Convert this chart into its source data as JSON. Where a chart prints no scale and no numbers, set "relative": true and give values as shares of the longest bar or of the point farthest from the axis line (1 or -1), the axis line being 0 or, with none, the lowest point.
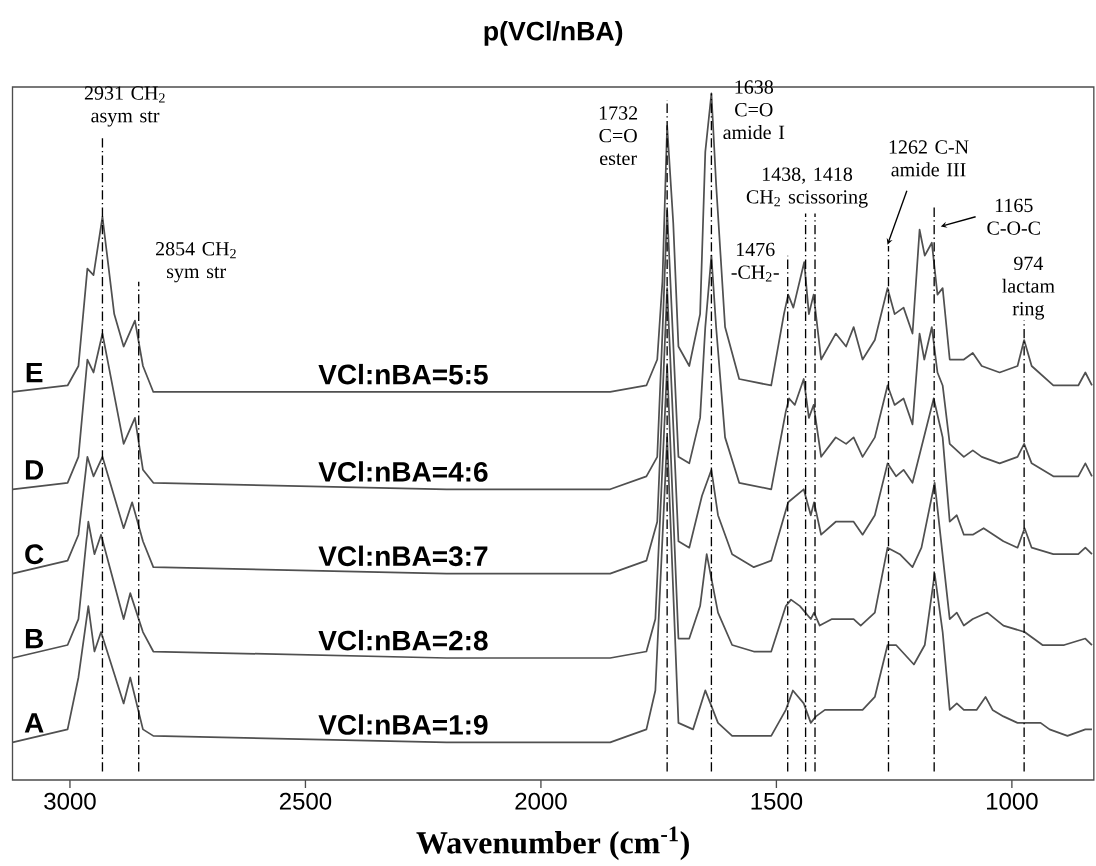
{
  "chart_data": {
    "type": "line",
    "title": "p(VCl/nBA)",
    "xlabel": "Wavenumber (cm$^{-1}$)",
    "relative": true,
    "line_style": "solid",
    "xlim": [
      3122,
      826
    ],
    "xticks": [
      3000,
      2500,
      2000,
      1500,
      1000
    ],
    "series": [
      {
        "name": "VCl:nBA=5:5",
        "color": "#505050",
        "x": [
          3122,
          3005,
          2982,
          2963,
          2950,
          2931,
          2906,
          2886,
          2862,
          2845,
          2823,
          2792,
          2200,
          1853,
          1776,
          1753,
          1742,
          1732,
          1719,
          1708,
          1685,
          1662,
          1651,
          1638,
          1628,
          1609,
          1579,
          1511,
          1484,
          1475,
          1464,
          1441,
          1431,
          1421,
          1405,
          1374,
          1352,
          1336,
          1317,
          1291,
          1264,
          1249,
          1230,
          1211,
          1196,
          1185,
          1170,
          1158,
          1147,
          1132,
          1102,
          1083,
          1064,
          1026,
          988,
          974,
          958,
          912,
          859,
          844,
          830
        ],
        "values": [
          0.54,
          0.55,
          0.58,
          0.73,
          0.72,
          0.81,
          0.66,
          0.61,
          0.65,
          0.58,
          0.54,
          0.54,
          0.54,
          0.54,
          0.55,
          0.59,
          0.71,
          0.95,
          0.8,
          0.61,
          0.58,
          0.66,
          0.91,
          1.0,
          0.86,
          0.64,
          0.56,
          0.55,
          0.66,
          0.69,
          0.67,
          0.74,
          0.66,
          0.69,
          0.59,
          0.63,
          0.61,
          0.64,
          0.59,
          0.62,
          0.7,
          0.66,
          0.67,
          0.63,
          0.79,
          0.75,
          0.77,
          0.69,
          0.7,
          0.59,
          0.59,
          0.6,
          0.58,
          0.57,
          0.58,
          0.62,
          0.58,
          0.55,
          0.55,
          0.57,
          0.55
        ]
      },
      {
        "name": "VCl:nBA=4:6",
        "color": "#505050",
        "x": [
          3122,
          3005,
          2982,
          2963,
          2950,
          2931,
          2886,
          2862,
          2845,
          2823,
          2200,
          1853,
          1776,
          1753,
          1742,
          1732,
          1708,
          1685,
          1662,
          1651,
          1638,
          1628,
          1609,
          1579,
          1511,
          1480,
          1473,
          1461,
          1442,
          1431,
          1421,
          1405,
          1374,
          1352,
          1336,
          1317,
          1291,
          1264,
          1249,
          1230,
          1211,
          1196,
          1186,
          1170,
          1158,
          1147,
          1132,
          1102,
          1083,
          1064,
          1026,
          988,
          974,
          958,
          912,
          859,
          844,
          830
        ],
        "values": [
          0.39,
          0.4,
          0.44,
          0.59,
          0.57,
          0.63,
          0.46,
          0.5,
          0.42,
          0.4,
          0.39,
          0.39,
          0.41,
          0.44,
          0.63,
          0.82,
          0.44,
          0.43,
          0.5,
          0.64,
          0.75,
          0.64,
          0.47,
          0.4,
          0.39,
          0.51,
          0.53,
          0.52,
          0.56,
          0.5,
          0.52,
          0.44,
          0.47,
          0.46,
          0.47,
          0.44,
          0.47,
          0.55,
          0.52,
          0.53,
          0.49,
          0.63,
          0.59,
          0.64,
          0.57,
          0.55,
          0.46,
          0.44,
          0.45,
          0.44,
          0.43,
          0.44,
          0.46,
          0.43,
          0.41,
          0.41,
          0.43,
          0.41
        ]
      },
      {
        "name": "VCl:nBA=3:7",
        "color": "#505050",
        "x": [
          3122,
          3005,
          2982,
          2963,
          2950,
          2931,
          2886,
          2868,
          2845,
          2823,
          2200,
          1853,
          1776,
          1753,
          1732,
          1708,
          1685,
          1658,
          1638,
          1624,
          1594,
          1548,
          1511,
          1475,
          1442,
          1427,
          1420,
          1405,
          1374,
          1336,
          1317,
          1291,
          1264,
          1246,
          1230,
          1211,
          1166,
          1147,
          1132,
          1117,
          1102,
          1083,
          1060,
          1018,
          988,
          973,
          958,
          912,
          859,
          844,
          830
        ],
        "values": [
          0.26,
          0.28,
          0.32,
          0.44,
          0.41,
          0.44,
          0.33,
          0.37,
          0.31,
          0.27,
          0.26,
          0.26,
          0.28,
          0.34,
          0.7,
          0.31,
          0.3,
          0.38,
          0.42,
          0.35,
          0.29,
          0.27,
          0.28,
          0.37,
          0.39,
          0.35,
          0.37,
          0.32,
          0.34,
          0.34,
          0.32,
          0.35,
          0.43,
          0.41,
          0.42,
          0.4,
          0.53,
          0.47,
          0.34,
          0.35,
          0.32,
          0.32,
          0.33,
          0.31,
          0.3,
          0.33,
          0.3,
          0.29,
          0.29,
          0.3,
          0.29
        ]
      },
      {
        "name": "VCl:nBA=2:8",
        "color": "#505050",
        "x": [
          3122,
          3005,
          2982,
          2961,
          2948,
          2934,
          2886,
          2872,
          2845,
          2823,
          2200,
          1853,
          1776,
          1757,
          1732,
          1708,
          1685,
          1662,
          1648,
          1624,
          1594,
          1548,
          1511,
          1480,
          1469,
          1450,
          1427,
          1420,
          1408,
          1382,
          1336,
          1321,
          1291,
          1264,
          1238,
          1211,
          1192,
          1164,
          1132,
          1117,
          1102,
          1083,
          1052,
          1018,
          973,
          935,
          889,
          844,
          830
        ],
        "values": [
          0.13,
          0.15,
          0.19,
          0.34,
          0.29,
          0.32,
          0.19,
          0.23,
          0.17,
          0.14,
          0.13,
          0.13,
          0.14,
          0.19,
          0.58,
          0.16,
          0.16,
          0.21,
          0.29,
          0.2,
          0.15,
          0.14,
          0.14,
          0.21,
          0.22,
          0.21,
          0.19,
          0.2,
          0.18,
          0.19,
          0.19,
          0.18,
          0.2,
          0.3,
          0.29,
          0.27,
          0.3,
          0.4,
          0.19,
          0.2,
          0.18,
          0.19,
          0.2,
          0.18,
          0.17,
          0.15,
          0.15,
          0.16,
          0.15
        ]
      },
      {
        "name": "VCl:nBA=1:9",
        "color": "#505050",
        "x": [
          3122,
          3005,
          2982,
          2961,
          2948,
          2934,
          2886,
          2872,
          2845,
          2823,
          2200,
          1853,
          1776,
          1757,
          1732,
          1708,
          1677,
          1651,
          1624,
          1594,
          1548,
          1511,
          1480,
          1465,
          1442,
          1427,
          1416,
          1397,
          1359,
          1336,
          1317,
          1291,
          1264,
          1246,
          1208,
          1185,
          1164,
          1147,
          1132,
          1117,
          1102,
          1075,
          1056,
          1041,
          1018,
          988,
          965,
          939,
          920,
          882,
          844,
          830
        ],
        "values": [
          0.0,
          0.02,
          0.1,
          0.21,
          0.14,
          0.17,
          0.06,
          0.1,
          0.02,
          0.01,
          0.0,
          0.0,
          0.02,
          0.08,
          0.47,
          0.03,
          0.02,
          0.08,
          0.03,
          0.01,
          0.01,
          0.01,
          0.05,
          0.08,
          0.06,
          0.03,
          0.04,
          0.05,
          0.05,
          0.05,
          0.05,
          0.07,
          0.15,
          0.15,
          0.12,
          0.15,
          0.26,
          0.17,
          0.05,
          0.06,
          0.05,
          0.05,
          0.07,
          0.05,
          0.04,
          0.03,
          0.03,
          0.03,
          0.02,
          0.01,
          0.02,
          0.02
        ]
      }
    ],
    "ref_lines": [
      {
        "axis": "x",
        "value": 2931,
        "label": "2931 CH$_{2}$ asym str",
        "color": "#000000",
        "line_style": "dashed"
      },
      {
        "axis": "x",
        "value": 2854,
        "label": "2854 CH$_{2}$ sym str",
        "color": "#000000",
        "line_style": "dashed"
      },
      {
        "axis": "x",
        "value": 1732,
        "label": "1732 C=O ester",
        "color": "#000000",
        "line_style": "dashed"
      },
      {
        "axis": "x",
        "value": 1638,
        "label": "1638 C=O amide I",
        "color": "#000000",
        "line_style": "dashed"
      },
      {
        "axis": "x",
        "value": 1476,
        "label": "1476 -CH$_{2}$-",
        "color": "#000000",
        "line_style": "dashed"
      },
      {
        "axis": "x",
        "value": 1438,
        "label": "1438, 1418 CH$_{2}$ scissoring",
        "color": "#000000",
        "line_style": "dashed"
      },
      {
        "axis": "x",
        "value": 1418,
        "color": "#000000",
        "line_style": "dashed"
      },
      {
        "axis": "x",
        "value": 1262,
        "label": "1262 C-N amide III",
        "color": "#000000",
        "line_style": "dashed"
      },
      {
        "axis": "x",
        "value": 1165,
        "label": "1165 C-O-C",
        "color": "#000000",
        "line_style": "dashed"
      },
      {
        "axis": "x",
        "value": 974,
        "label": "974 lactam ring",
        "color": "#000000",
        "line_style": "dashed"
      }
    ],
    "annotations": [
      "E",
      "D",
      "C",
      "B",
      "A"
    ]
  }
}
